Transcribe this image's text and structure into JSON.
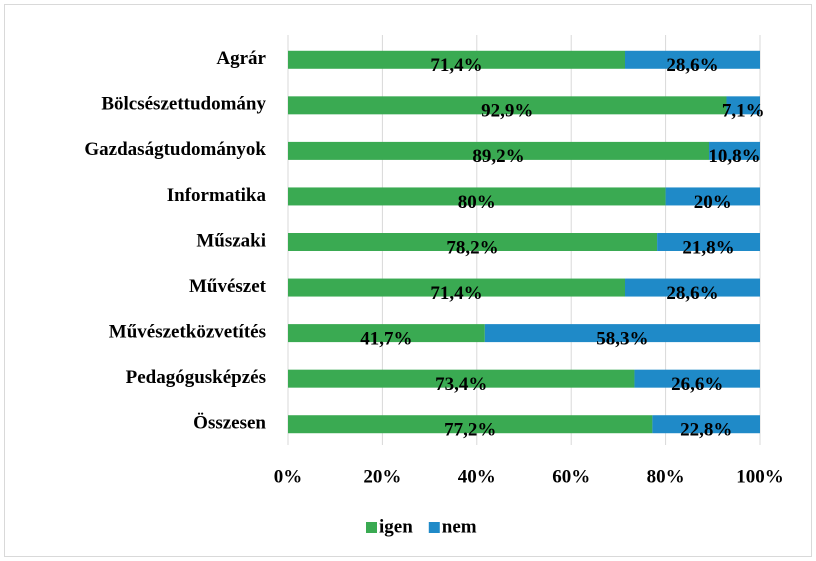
{
  "chart_data": {
    "type": "stacked_bar_horizontal",
    "categories": [
      "Agrár",
      "Bölcsészettudomány",
      "Gazdaságtudományok",
      "Informatika",
      "Műszaki",
      "Művészet",
      "Művészetközvetítés",
      "Pedagógusképzés",
      "Összesen"
    ],
    "series": [
      {
        "name": "igen",
        "color": "#3aaa52",
        "values": [
          71.4,
          92.9,
          89.2,
          80,
          78.2,
          71.4,
          41.7,
          73.4,
          77.2
        ],
        "value_labels": [
          "71,4%",
          "92,9%",
          "89,2%",
          "80%",
          "78,2%",
          "71,4%",
          "41,7%",
          "73,4%",
          "77,2%"
        ]
      },
      {
        "name": "nem",
        "color": "#1f8ac8",
        "values": [
          28.6,
          7.1,
          10.8,
          20,
          21.8,
          28.6,
          58.3,
          26.6,
          22.8
        ],
        "value_labels": [
          "28,6%",
          "7,1%",
          "10,8%",
          "20%",
          "21,8%",
          "28,6%",
          "58,3%",
          "26,6%",
          "22,8%"
        ]
      }
    ],
    "xlim": [
      0,
      100
    ],
    "xticks": [
      {
        "value": 0,
        "label": "0%"
      },
      {
        "value": 20,
        "label": "20%"
      },
      {
        "value": 40,
        "label": "40%"
      },
      {
        "value": 60,
        "label": "60%"
      },
      {
        "value": 80,
        "label": "80%"
      },
      {
        "value": 100,
        "label": "100%"
      }
    ],
    "grid": true,
    "legend": "bottom"
  }
}
